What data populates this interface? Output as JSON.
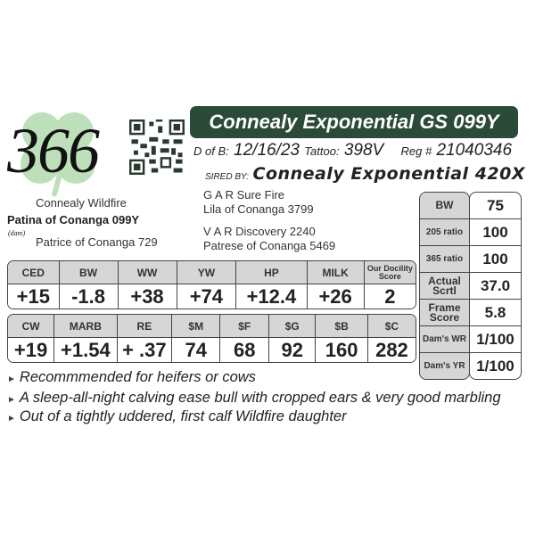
{
  "lot_number": "366",
  "title": "Connealy Exponential GS 099Y",
  "colors": {
    "title_bar": "#2b4a37",
    "header_gray": "#d6d6d6",
    "clover": "#9ccf9a"
  },
  "info": {
    "dob_label": "D of B:",
    "dob": "12/16/23",
    "tattoo_label": "Tattoo:",
    "tattoo": "398V",
    "reg_label": "Reg #",
    "reg": "21040346"
  },
  "sired": {
    "label": "SIRED BY:",
    "value": "Connealy Exponential 420X"
  },
  "pedigree": {
    "maternal_grandsire": "Connealy Wildfire",
    "dam": "Patina of Conanga 099Y",
    "dam_label": "(dam)",
    "maternal_granddam": "Patrice of Conanga 729",
    "sire_sire": "G A R Sure Fire",
    "sire_dam": "Lila of Conanga 3799",
    "dam_side_sire": "V A R Discovery 2240",
    "dam_side_dam": "Patrese of Conanga 5469"
  },
  "epd1": {
    "headers": [
      "CED",
      "BW",
      "WW",
      "YW",
      "HP",
      "MILK",
      "Our Docility Score"
    ],
    "values": [
      "+15",
      "-1.8",
      "+38",
      "+74",
      "+12.4",
      "+26",
      "2"
    ]
  },
  "epd2": {
    "headers": [
      "CW",
      "MARB",
      "RE",
      "$M",
      "$F",
      "$G",
      "$B",
      "$C"
    ],
    "values": [
      "+19",
      "+1.54",
      "+ .37",
      "74",
      "68",
      "92",
      "160",
      "282"
    ]
  },
  "measures": [
    {
      "label": "BW",
      "value": "75"
    },
    {
      "label": "205 ratio",
      "value": "100"
    },
    {
      "label": "365 ratio",
      "value": "100"
    },
    {
      "label": "Actual Scrtl",
      "value": "37.0"
    },
    {
      "label": "Frame Score",
      "value": "5.8"
    },
    {
      "label": "Dam's WR",
      "value": "1/100"
    },
    {
      "label": "Dam's YR",
      "value": "1/100"
    }
  ],
  "notes": [
    "Recommmended for heifers or cows",
    "A sleep-all-night calving ease bull with cropped ears & very good marbling",
    "Out of a tightly uddered, first calf Wildfire daughter"
  ]
}
